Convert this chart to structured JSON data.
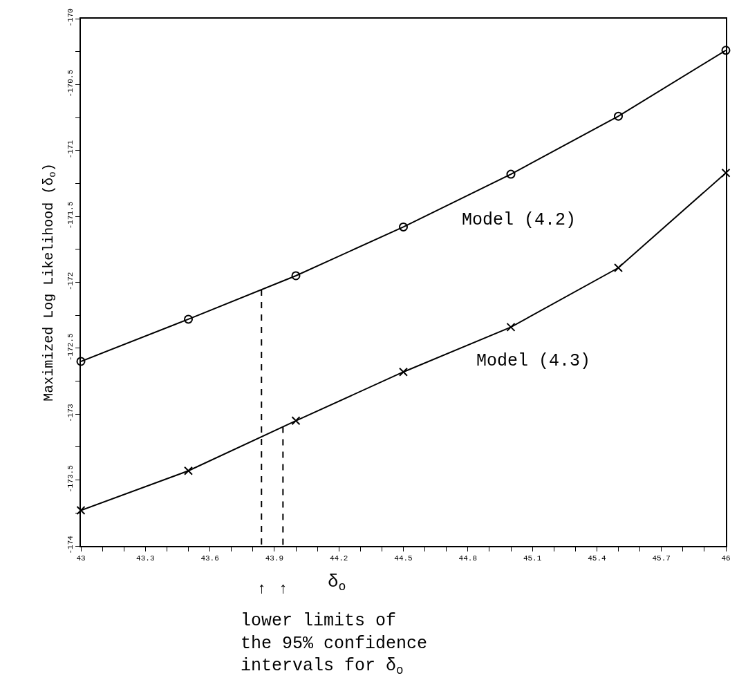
{
  "chart_data": {
    "type": "line",
    "xlabel": "δ$_{o}$",
    "ylabel": "Maximized Log Likelihood (δ$_{o}$)",
    "x": [
      43,
      43.5,
      44,
      44.5,
      45,
      45.5,
      46
    ],
    "series": [
      {
        "name": "Model (4.2)",
        "color": "#000000",
        "marker": "circle",
        "values": [
          -172.6,
          -172.28,
          -171.95,
          -171.58,
          -171.18,
          -170.74,
          -170.24
        ]
      },
      {
        "name": "Model (4.3)",
        "color": "#000000",
        "marker": "cross",
        "values": [
          -173.73,
          -173.43,
          -173.05,
          -172.68,
          -172.34,
          -171.89,
          -171.17
        ]
      }
    ],
    "ref_lines": [
      {
        "axis": "x",
        "value": 43.84,
        "color": "#000000",
        "line_style": "dashed"
      },
      {
        "axis": "x",
        "value": 43.94,
        "color": "#000000",
        "line_style": "dashed"
      }
    ],
    "xlim": [
      43,
      46
    ],
    "ylim": [
      -174,
      -170
    ],
    "xticks": [
      43,
      {
        "value": 43.1,
        "label": null
      },
      {
        "value": 43.2,
        "label": null
      },
      43.3,
      {
        "value": 43.4,
        "label": null
      },
      {
        "value": 43.5,
        "label": null
      },
      43.6,
      {
        "value": 43.7,
        "label": null
      },
      {
        "value": 43.8,
        "label": null
      },
      43.9,
      {
        "value": 44.0,
        "label": null
      },
      {
        "value": 44.1,
        "label": null
      },
      44.2,
      {
        "value": 44.3,
        "label": null
      },
      {
        "value": 44.4,
        "label": null
      },
      44.5,
      {
        "value": 44.6,
        "label": null
      },
      {
        "value": 44.7,
        "label": null
      },
      44.8,
      {
        "value": 44.9,
        "label": null
      },
      {
        "value": 45.0,
        "label": null
      },
      45.1,
      {
        "value": 45.2,
        "label": null
      },
      {
        "value": 45.3,
        "label": null
      },
      45.4,
      {
        "value": 45.5,
        "label": null
      },
      {
        "value": 45.6,
        "label": null
      },
      45.7,
      {
        "value": 45.8,
        "label": null
      },
      {
        "value": 45.9,
        "label": null
      },
      46
    ],
    "yticks": [
      -174,
      {
        "value": -173.75,
        "label": null
      },
      -173.5,
      {
        "value": -173.25,
        "label": null
      },
      -173,
      {
        "value": -172.75,
        "label": null
      },
      -172.5,
      {
        "value": -172.25,
        "label": null
      },
      -172,
      {
        "value": -171.75,
        "label": null
      },
      -171.5,
      {
        "value": -171.25,
        "label": null
      },
      -171,
      {
        "value": -170.75,
        "label": null
      },
      -170.5,
      {
        "value": -170.25,
        "label": null
      },
      -170
    ],
    "legend": false,
    "annotations": [
      "↑",
      "↑",
      "lower limits of\nthe 95% confidence\nintervals for δ$_{o}$"
    ]
  }
}
